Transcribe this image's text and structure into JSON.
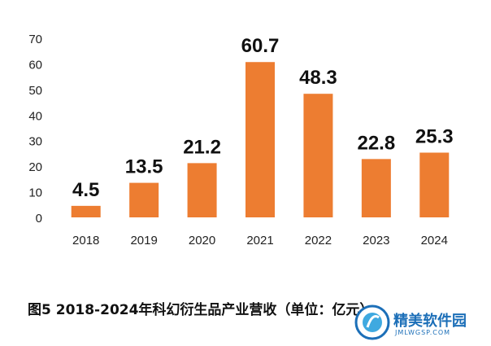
{
  "chart_data": {
    "type": "bar",
    "categories": [
      "2018",
      "2019",
      "2020",
      "2021",
      "2022",
      "2023",
      "2024"
    ],
    "values": [
      4.5,
      13.5,
      21.2,
      60.7,
      48.3,
      22.8,
      25.3
    ],
    "value_labels": [
      "4.5",
      "13.5",
      "21.2",
      "60.7",
      "48.3",
      "22.8",
      "25.3"
    ],
    "ylim": [
      0,
      70
    ],
    "yticks": [
      0,
      10,
      20,
      30,
      40,
      50,
      60,
      70
    ],
    "grid": false,
    "legend": false,
    "bar_color": "#ED7D31"
  },
  "caption": "图5 2018-2024年科幻衍生品产业营收（单位：亿元）",
  "watermark": {
    "text": "精美软件园",
    "sub": "JMLWGSP.COM",
    "color": "#1c6fb8"
  }
}
